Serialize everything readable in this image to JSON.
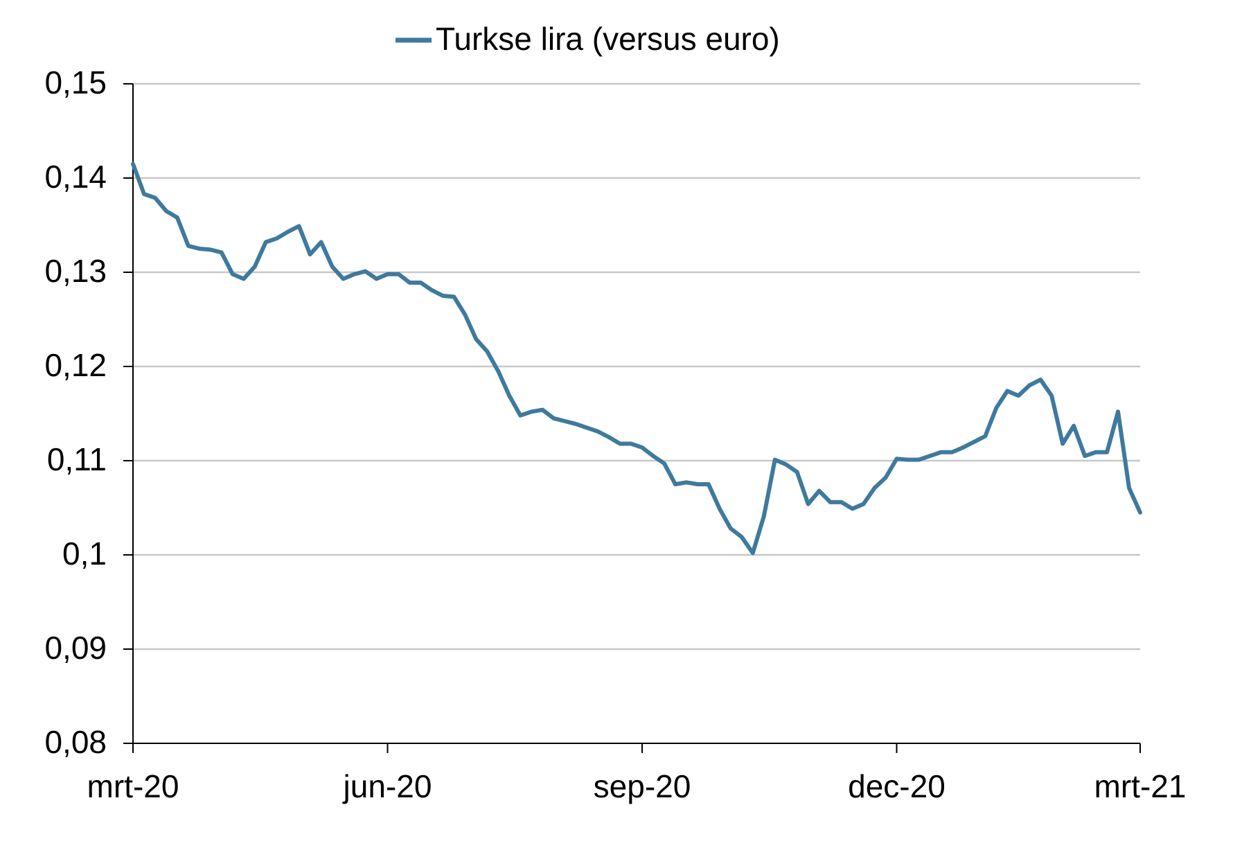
{
  "chart_data": {
    "type": "line",
    "categories": [
      "mrt-20",
      null,
      null,
      null,
      null,
      null,
      null,
      null,
      null,
      null,
      null,
      null,
      null,
      null,
      null,
      null,
      null,
      null,
      null,
      null,
      null,
      null,
      null,
      "jun-20",
      null,
      null,
      null,
      null,
      null,
      null,
      null,
      null,
      null,
      null,
      null,
      null,
      null,
      null,
      null,
      null,
      null,
      null,
      null,
      null,
      null,
      null,
      "sep-20",
      null,
      null,
      null,
      null,
      null,
      null,
      null,
      null,
      null,
      null,
      null,
      null,
      null,
      null,
      null,
      null,
      null,
      null,
      null,
      null,
      null,
      null,
      "dec-20",
      null,
      null,
      null,
      null,
      null,
      null,
      null,
      null,
      null,
      null,
      null,
      null,
      null,
      null,
      null,
      null,
      null,
      null,
      null,
      null,
      null,
      "mrt-21"
    ],
    "series": [
      {
        "name": "Turkse lira (versus euro)",
        "color": "#3f7a9e",
        "values": [
          0.1415,
          0.1383,
          0.1379,
          0.1365,
          0.1358,
          0.1328,
          0.1325,
          0.1324,
          0.1321,
          0.1298,
          0.1293,
          0.1306,
          0.1332,
          0.1336,
          0.1343,
          0.1349,
          0.1319,
          0.1332,
          0.1306,
          0.1293,
          0.1298,
          0.1301,
          0.1293,
          0.1298,
          0.1298,
          0.1289,
          0.1289,
          0.1281,
          0.1275,
          0.1274,
          0.1255,
          0.1229,
          0.1216,
          0.1195,
          0.1169,
          0.1148,
          0.1152,
          0.1154,
          0.1145,
          0.1142,
          0.1139,
          0.1135,
          0.1131,
          0.1125,
          0.1118,
          0.1118,
          0.1114,
          0.1105,
          0.1097,
          0.1075,
          0.1077,
          0.1075,
          0.1075,
          0.1049,
          0.1028,
          0.1019,
          0.1002,
          0.1041,
          0.1101,
          0.1096,
          0.1088,
          0.1054,
          0.1068,
          0.1056,
          0.1056,
          0.1049,
          0.1054,
          0.1071,
          0.1082,
          0.1102,
          0.1101,
          0.1101,
          0.1105,
          0.1109,
          0.1109,
          0.1114,
          0.112,
          0.1126,
          0.1156,
          0.1174,
          0.1169,
          0.118,
          0.1186,
          0.1169,
          0.1118,
          0.1137,
          0.1105,
          0.1109,
          0.1109,
          0.1152,
          0.1071,
          0.1045
        ]
      }
    ],
    "ylim": [
      0.08,
      0.15
    ],
    "yticks": [
      {
        "value": 0.08,
        "label": "0,08"
      },
      {
        "value": 0.09,
        "label": "0,09"
      },
      {
        "value": 0.1,
        "label": "0,1"
      },
      {
        "value": 0.11,
        "label": "0,11"
      },
      {
        "value": 0.12,
        "label": "0,12"
      },
      {
        "value": 0.13,
        "label": "0,13"
      },
      {
        "value": 0.14,
        "label": "0,14"
      },
      {
        "value": 0.15,
        "label": "0,15"
      }
    ],
    "grid": true,
    "legend": "top"
  }
}
